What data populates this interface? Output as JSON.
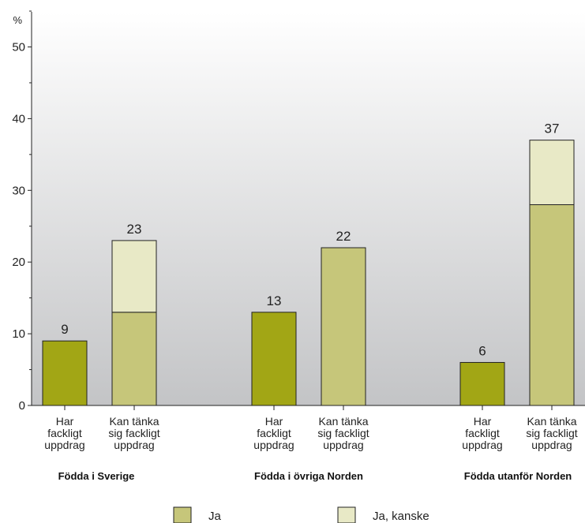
{
  "chart_data": {
    "type": "bar",
    "unit_label": "%",
    "ylim": [
      0,
      55
    ],
    "yticks": [
      0,
      10,
      20,
      30,
      40,
      50
    ],
    "colors": {
      "ja": "#a2a615",
      "ja_light": "#c6c67a",
      "ja_kanske": "#e8e9c6"
    },
    "legend": [
      {
        "name": "Ja",
        "color": "#c6c67a"
      },
      {
        "name": "Ja, kanske",
        "color": "#e8e9c6"
      }
    ],
    "groups": [
      {
        "name": "Födda i Sverige",
        "bars": [
          {
            "label": [
              "Har",
              "fackligt",
              "uppdrag"
            ],
            "ja": 9,
            "ja_kanske": 0,
            "total_label": "9",
            "style": "dark"
          },
          {
            "label": [
              "Kan tänka",
              "sig fackligt",
              "uppdrag"
            ],
            "ja": 13,
            "ja_kanske": 10,
            "total_label": "23",
            "style": "light"
          }
        ]
      },
      {
        "name": "Födda i övriga Norden",
        "bars": [
          {
            "label": [
              "Har",
              "fackligt",
              "uppdrag"
            ],
            "ja": 13,
            "ja_kanske": 0,
            "total_label": "13",
            "style": "dark"
          },
          {
            "label": [
              "Kan tänka",
              "sig fackligt",
              "uppdrag"
            ],
            "ja": 22,
            "ja_kanske": 0,
            "total_label": "22",
            "style": "light"
          }
        ]
      },
      {
        "name": "Födda utanför Norden",
        "bars": [
          {
            "label": [
              "Har",
              "fackligt",
              "uppdrag"
            ],
            "ja": 6,
            "ja_kanske": 0,
            "total_label": "6",
            "style": "dark"
          },
          {
            "label": [
              "Kan tänka",
              "sig fackligt",
              "uppdrag"
            ],
            "ja": 28,
            "ja_kanske": 9,
            "total_label": "37",
            "style": "light"
          }
        ]
      }
    ]
  }
}
